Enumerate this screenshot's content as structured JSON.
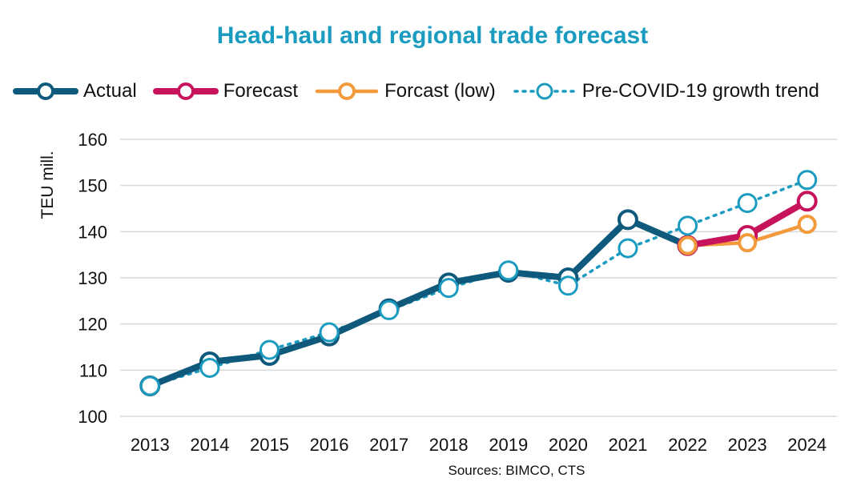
{
  "chart_data": {
    "type": "line",
    "title": "Head-haul and regional trade forecast",
    "ylabel": "TEU mill.",
    "xlabel": "",
    "source": "Sources: BIMCO, CTS",
    "ylim": [
      100,
      160
    ],
    "yticks": [
      100,
      110,
      120,
      130,
      140,
      150,
      160
    ],
    "grid": true,
    "legend_position": "top",
    "categories": [
      "2013",
      "2014",
      "2015",
      "2016",
      "2017",
      "2018",
      "2019",
      "2020",
      "2021",
      "2022",
      "2023",
      "2024"
    ],
    "series": [
      {
        "name": "Actual",
        "color": "#0f5a7c",
        "style": "solid-thick",
        "values": [
          106.6,
          111.8,
          113.2,
          117.4,
          123.3,
          128.9,
          131.2,
          130.0,
          142.6,
          137.0,
          null,
          null
        ]
      },
      {
        "name": "Forecast",
        "color": "#c7135c",
        "style": "solid-thick",
        "values": [
          null,
          null,
          null,
          null,
          null,
          null,
          null,
          null,
          null,
          137.0,
          139.2,
          146.6
        ]
      },
      {
        "name": "Forcast (low)",
        "color": "#f39a3c",
        "style": "solid",
        "values": [
          null,
          null,
          null,
          null,
          null,
          null,
          null,
          null,
          null,
          137.0,
          137.6,
          141.6
        ]
      },
      {
        "name": "Pre-COVID-19 growth trend",
        "color": "#1a9bbf",
        "style": "dotted",
        "values": [
          106.6,
          110.5,
          114.4,
          118.2,
          123.0,
          127.8,
          131.6,
          128.3,
          136.4,
          141.3,
          146.2,
          151.2
        ]
      }
    ]
  }
}
